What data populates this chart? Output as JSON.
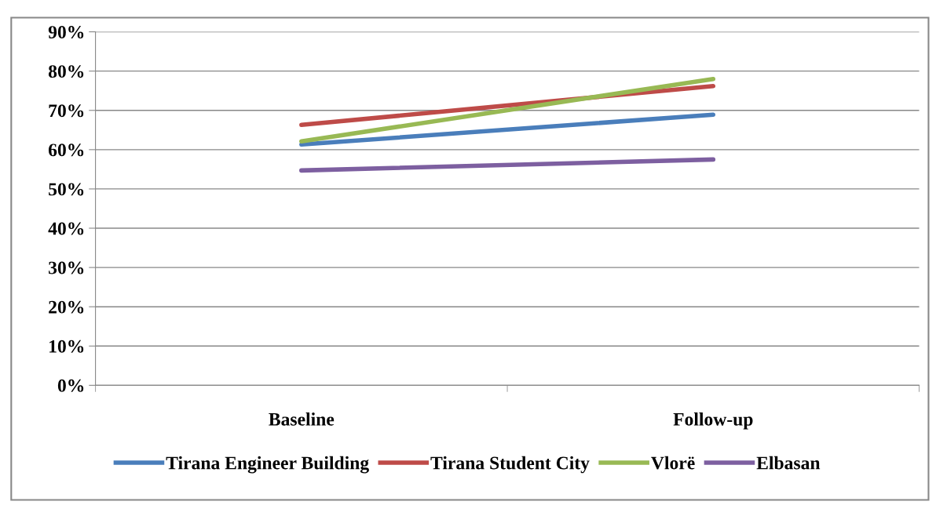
{
  "chart_data": {
    "type": "line",
    "categories": [
      "Baseline",
      "Follow-up"
    ],
    "series": [
      {
        "name": "Tirana Engineer Building",
        "color": "#4a7ebb",
        "values": [
          61.3,
          68.9
        ]
      },
      {
        "name": "Tirana Student City",
        "color": "#be4b48",
        "values": [
          66.3,
          76.2
        ]
      },
      {
        "name": "Vlorë",
        "color": "#98b954",
        "values": [
          62.1,
          78.0
        ]
      },
      {
        "name": "Elbasan",
        "color": "#7d5fa0",
        "values": [
          54.7,
          57.5
        ]
      }
    ],
    "ylim": [
      0,
      90
    ],
    "yticks": [
      {
        "value": 0,
        "label": "0%"
      },
      {
        "value": 10,
        "label": "10%"
      },
      {
        "value": 20,
        "label": "20%"
      },
      {
        "value": 30,
        "label": "30%"
      },
      {
        "value": 40,
        "label": "40%"
      },
      {
        "value": 50,
        "label": "50%"
      },
      {
        "value": 60,
        "label": "60%"
      },
      {
        "value": 70,
        "label": "70%"
      },
      {
        "value": 80,
        "label": "80%"
      },
      {
        "value": 90,
        "label": "90%"
      }
    ],
    "grid": "y",
    "legend": "bottom",
    "marker": "none",
    "line_style": "solid"
  }
}
